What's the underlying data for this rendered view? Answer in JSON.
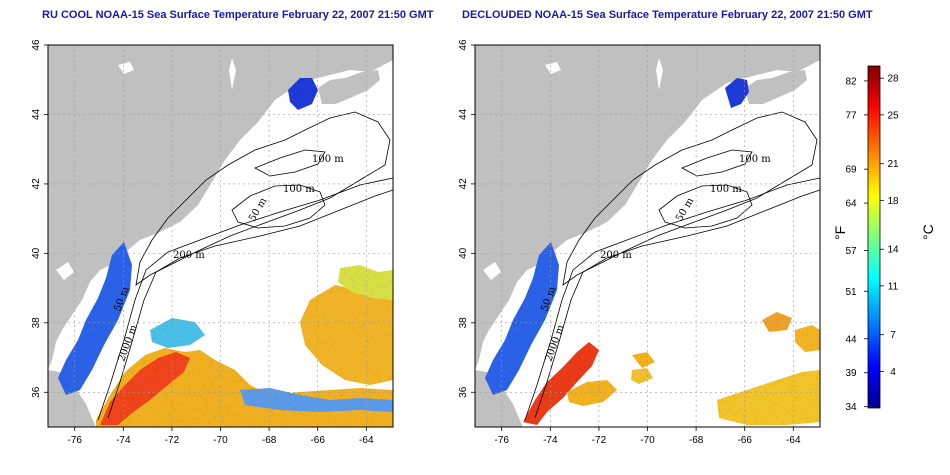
{
  "panels": {
    "left": {
      "title": "RU COOL NOAA-15 Sea Surface Temperature February 22, 2007 21:50 GMT"
    },
    "right": {
      "title": "DECLOUDED NOAA-15 Sea Surface Temperature February 22, 2007 21:50 GMT"
    }
  },
  "axes": {
    "x_ticks": [
      "-76",
      "-74",
      "-72",
      "-70",
      "-68",
      "-66",
      "-64"
    ],
    "y_ticks": [
      "36",
      "38",
      "40",
      "42",
      "44",
      "46"
    ],
    "lon_range": [
      -77.1,
      -62.9
    ],
    "lat_range": [
      35.0,
      46.0
    ]
  },
  "contours": {
    "labels": [
      "100 m",
      "100 m",
      "50 m",
      "200 m",
      "50 m",
      "2000 m"
    ]
  },
  "colorbar": {
    "fahrenheit_ticks": [
      "82",
      "77",
      "69",
      "64",
      "57",
      "51",
      "44",
      "39",
      "34"
    ],
    "celsius_ticks": [
      "28",
      "25",
      "21",
      "18",
      "14",
      "11",
      "7",
      "4"
    ],
    "f_unit": "°F",
    "c_unit": "°C",
    "range_c": [
      1,
      29
    ],
    "colors": [
      "#00008f",
      "#0000ff",
      "#0080ff",
      "#00ffff",
      "#80ff80",
      "#ffff00",
      "#ff8000",
      "#ff0000",
      "#800000"
    ]
  },
  "colors": {
    "land": "#c0c0c0",
    "sea": "#ffffff",
    "grid": "#9a9a9a",
    "title": "#1a1aa6"
  }
}
